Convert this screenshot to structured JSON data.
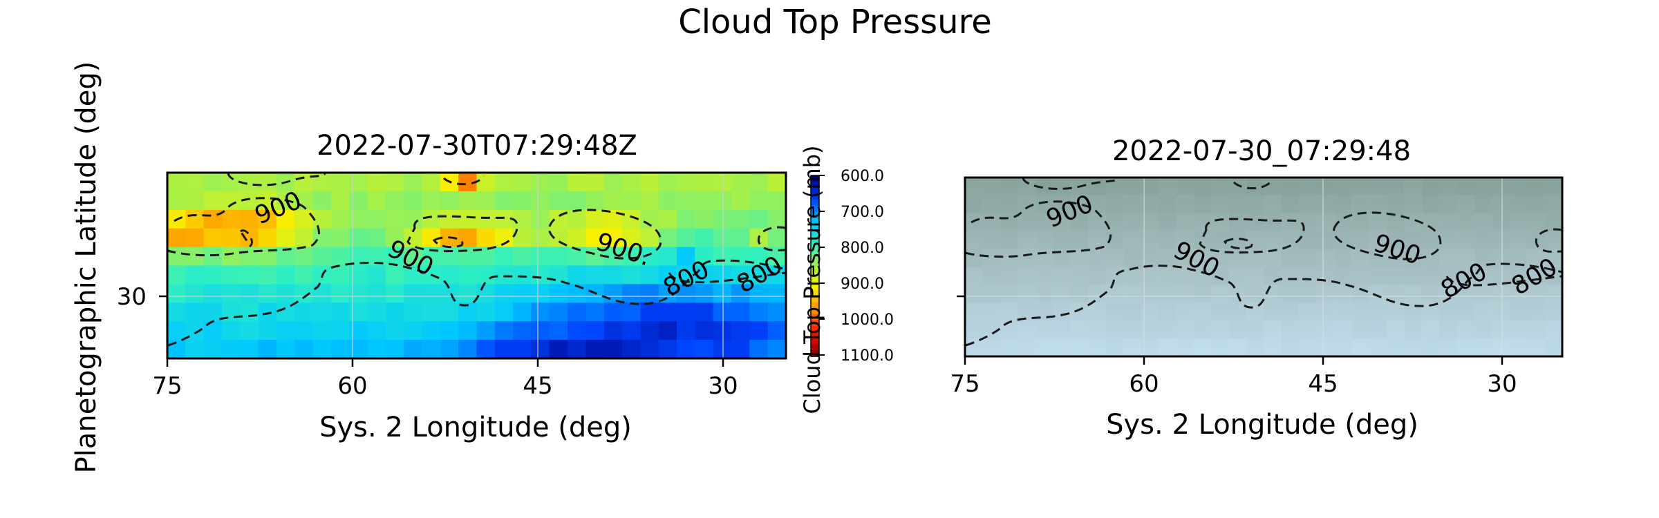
{
  "title": "Cloud Top Pressure",
  "ylabel": "Planetographic Latitude (deg)",
  "chart_data": [
    {
      "type": "heatmap",
      "title": "2022-07-30T07:29:48Z",
      "xlabel": "Sys. 2 Longitude (deg)",
      "xlim": [
        75,
        25
      ],
      "xticks": [
        75,
        60,
        45,
        30
      ],
      "yticks": [
        30
      ],
      "colorbar": {
        "label": "Cloud Top Pressure (mb)",
        "ticks": [
          "600.0",
          "700.0",
          "800.0",
          "900.0",
          "1000.0",
          "1100.0"
        ],
        "range": [
          600,
          1100
        ],
        "colormap": [
          "#00008b",
          "#0044ff",
          "#00c8ff",
          "#30f0c0",
          "#a8f048",
          "#f8f000",
          "#ff8c00",
          "#ff1a00",
          "#8b0000"
        ]
      },
      "contour_labels": [
        "900",
        "900",
        "900.",
        "800",
        "800"
      ],
      "contour_style": "dashed"
    },
    {
      "type": "heatmap",
      "title": "2022-07-30_07:29:48",
      "xlabel": "Sys. 2 Longitude (deg)",
      "xlim": [
        75,
        25
      ],
      "xticks": [
        75,
        60,
        45,
        30
      ],
      "yticks": [
        30
      ],
      "contour_labels": [
        "900",
        "900",
        "900",
        "800",
        "800"
      ],
      "contour_style": "dashed",
      "background": "true-color image"
    }
  ]
}
